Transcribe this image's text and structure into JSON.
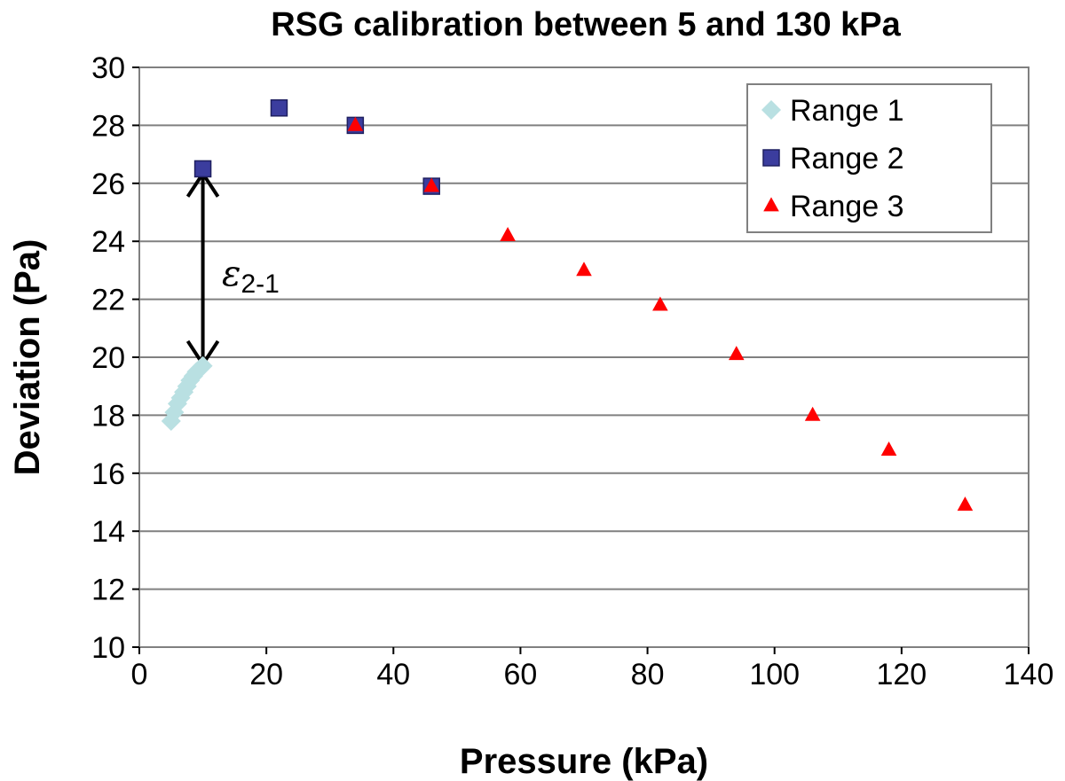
{
  "chart_data": {
    "type": "scatter",
    "title": "RSG calibration between 5 and 130 kPa",
    "xlabel": "Pressure (kPa)",
    "ylabel": "Deviation (Pa)",
    "xlim": [
      0,
      140
    ],
    "ylim": [
      10,
      30
    ],
    "xticks": [
      0,
      20,
      40,
      60,
      80,
      100,
      120,
      140
    ],
    "yticks": [
      10,
      12,
      14,
      16,
      18,
      20,
      22,
      24,
      26,
      28,
      30
    ],
    "grid": "horizontal",
    "legend_position": "top-right",
    "series": [
      {
        "name": "Range 1",
        "marker": "diamond",
        "color": "#b9e0e2",
        "x": [
          5,
          5.5,
          6,
          6.5,
          7,
          7.5,
          8,
          8.5,
          9,
          9.5,
          10
        ],
        "y": [
          17.8,
          18.1,
          18.4,
          18.6,
          18.8,
          19.0,
          19.2,
          19.35,
          19.5,
          19.6,
          19.7
        ]
      },
      {
        "name": "Range 2",
        "marker": "square",
        "color": "#3b3d9e",
        "x": [
          10,
          22,
          34,
          46
        ],
        "y": [
          26.5,
          28.6,
          28.0,
          25.9
        ]
      },
      {
        "name": "Range 3",
        "marker": "triangle",
        "color": "#ff0000",
        "x": [
          34,
          46,
          58,
          70,
          82,
          94,
          106,
          118,
          130
        ],
        "y": [
          28.0,
          25.9,
          24.2,
          23.0,
          21.8,
          20.1,
          18.0,
          16.8,
          14.9
        ]
      }
    ],
    "annotation": {
      "symbol": "ε",
      "subscript": "2-1",
      "arrow_x": 10,
      "arrow_from": 26.4,
      "arrow_to": 19.7
    }
  }
}
